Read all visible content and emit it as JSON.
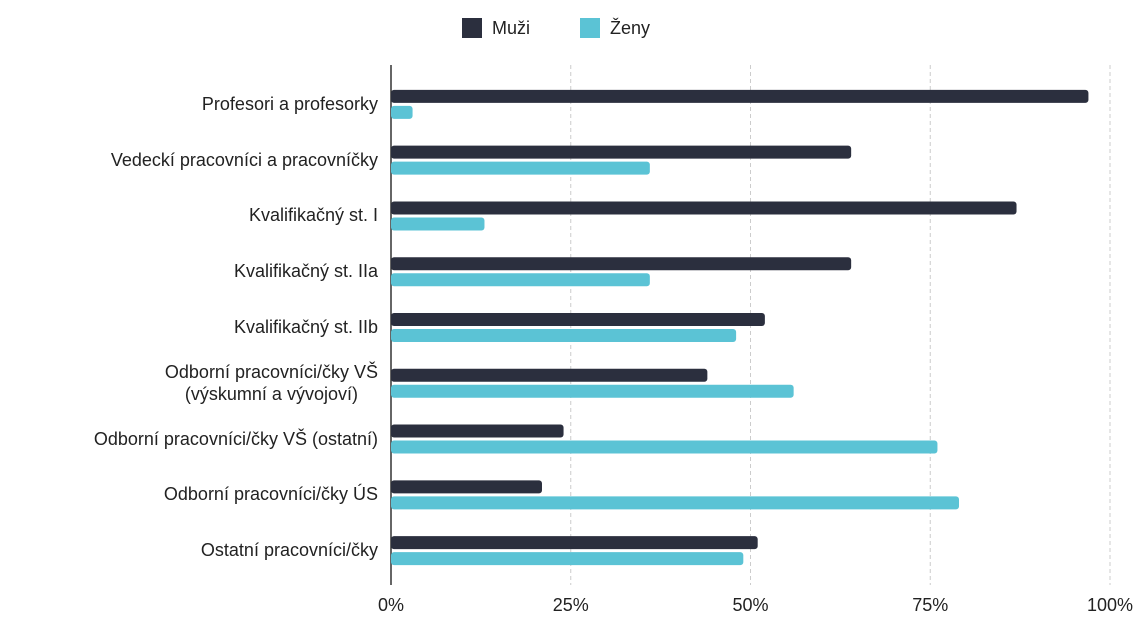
{
  "chart_data": {
    "type": "bar",
    "orientation": "horizontal",
    "categories": [
      "Profesori a profesorky",
      "Vedeckí pracovníci a pracovníčky",
      "Kvalifikačný st. I",
      "Kvalifikačný st. IIa",
      "Kvalifikačný st. IIb",
      "Odborní pracovníci/čky VŠ\n(výskumní a vývojoví)",
      "Odborní pracovníci/čky VŠ (ostatní)",
      "Odborní pracovníci/čky ÚS",
      "Ostatní pracovníci/čky"
    ],
    "series": [
      {
        "name": "Muži",
        "color": "#2b2f3e",
        "values": [
          97,
          64,
          87,
          64,
          52,
          44,
          24,
          21,
          51
        ]
      },
      {
        "name": "Ženy",
        "color": "#5bc3d5",
        "values": [
          3,
          36,
          13,
          36,
          48,
          56,
          76,
          79,
          49
        ]
      }
    ],
    "xlim": [
      0,
      100
    ],
    "xticks": [
      {
        "value": 0,
        "label": "0%"
      },
      {
        "value": 25,
        "label": "25%"
      },
      {
        "value": 50,
        "label": "50%"
      },
      {
        "value": 75,
        "label": "75%"
      },
      {
        "value": 100,
        "label": "100%"
      }
    ],
    "grid": true,
    "legend": "top"
  }
}
